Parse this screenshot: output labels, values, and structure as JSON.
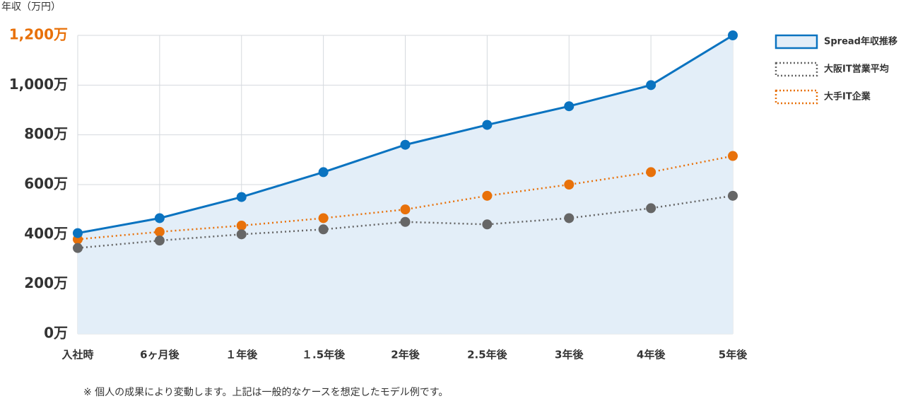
{
  "chart_data": {
    "type": "line",
    "y_label": "年収（万円）",
    "note": "※ 個人の成果により変動します。上記は一般的なケースを想定したモデル例です。",
    "categories": [
      "入社時",
      "6ヶ月後",
      "１年後",
      "１.5年後",
      "2年後",
      "2.5年後",
      "3年後",
      "4年後",
      "5年後"
    ],
    "series": [
      {
        "name": "Spread年収推移",
        "color": "#0a73c0",
        "style": "solid",
        "area": true,
        "area_color": "#e3eef8",
        "values": [
          405,
          465,
          550,
          650,
          760,
          840,
          915,
          1000,
          1200
        ]
      },
      {
        "name": "大阪IT営業平均",
        "color": "#666666",
        "style": "dotted",
        "area": false,
        "values": [
          345,
          375,
          400,
          420,
          450,
          440,
          465,
          505,
          555
        ]
      },
      {
        "name": "大手IT企業",
        "color": "#e8710a",
        "style": "dotted",
        "area": false,
        "values": [
          380,
          410,
          435,
          465,
          500,
          555,
          600,
          650,
          715
        ]
      }
    ],
    "ylim": [
      0,
      1200
    ],
    "yticks": [
      {
        "value": 0,
        "label": "0万"
      },
      {
        "value": 200,
        "label": "200万"
      },
      {
        "value": 400,
        "label": "400万"
      },
      {
        "value": 600,
        "label": "600万"
      },
      {
        "value": 800,
        "label": "800万"
      },
      {
        "value": 1000,
        "label": "1,000万"
      },
      {
        "value": 1200,
        "label": "1,200万"
      }
    ],
    "top_tick_color": "#e8710a",
    "grid": true,
    "legend_position": "right"
  }
}
